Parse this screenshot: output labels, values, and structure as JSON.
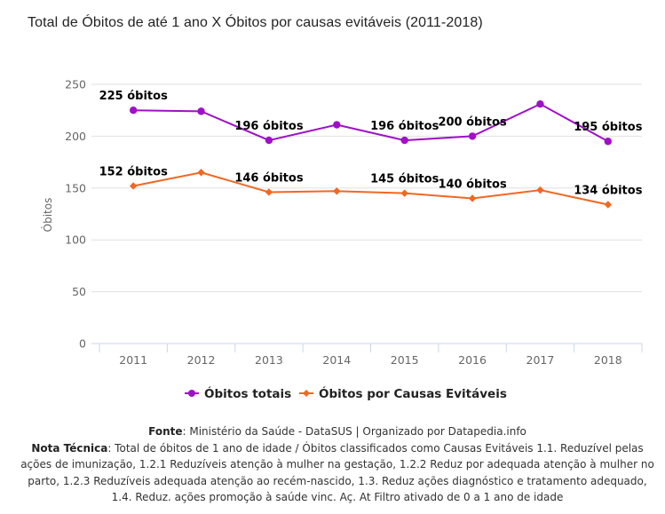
{
  "chart_data": {
    "type": "line",
    "title": "Total de Óbitos de até 1 ano X Óbitos por causas evitáveis (2011-2018)",
    "xlabel": "",
    "ylabel": "Óbitos",
    "categories": [
      "2011",
      "2012",
      "2013",
      "2014",
      "2015",
      "2016",
      "2017",
      "2018"
    ],
    "ylim": [
      0,
      250
    ],
    "yticks": [
      0,
      50,
      100,
      150,
      200,
      250
    ],
    "grid": true,
    "legend_position": "bottom",
    "series": [
      {
        "name": "Óbitos totais",
        "color": "#a010c8",
        "marker": "circle",
        "values": [
          225,
          224,
          196,
          211,
          196,
          200,
          231,
          195
        ],
        "labels": [
          "225 óbitos",
          "",
          "196 óbitos",
          "",
          "196 óbitos",
          "200 óbitos",
          "",
          "195 óbitos"
        ]
      },
      {
        "name": "Óbitos por Causas Evitáveis",
        "color": "#f26722",
        "marker": "diamond",
        "values": [
          152,
          165,
          146,
          147,
          145,
          140,
          148,
          134
        ],
        "labels": [
          "152 óbitos",
          "",
          "146 óbitos",
          "",
          "145 óbitos",
          "140 óbitos",
          "",
          "134 óbitos"
        ]
      }
    ]
  },
  "footer": {
    "source_label": "Fonte",
    "source_text": ": Ministério da Saúde - DataSUS | Organizado por Datapedia.info",
    "note_label": "Nota Técnica",
    "note_text": ": Total de óbitos de 1 ano de idade / Óbitos classificados como Causas Evitáveis 1.1. Reduzível pelas ações de imunização, 1.2.1 Reduzíveis atenção à mulher na gestação, 1.2.2 Reduz por adequada atenção à mulher no parto, 1.2.3 Reduzíveis adequada atenção ao recém-nascido, 1.3. Reduz ações diagnóstico e tratamento adequado, 1.4. Reduz. ações promoção à saúde vinc. Aç. At Filtro ativado de 0 a 1 ano de idade"
  }
}
